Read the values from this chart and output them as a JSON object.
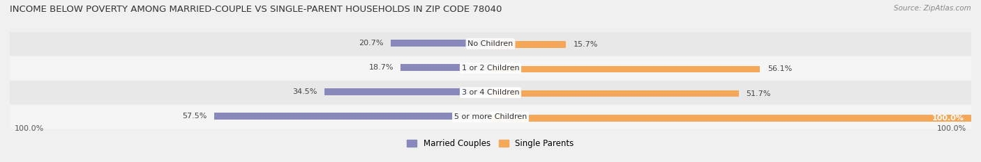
{
  "title": "INCOME BELOW POVERTY AMONG MARRIED-COUPLE VS SINGLE-PARENT HOUSEHOLDS IN ZIP CODE 78040",
  "source": "Source: ZipAtlas.com",
  "categories": [
    "No Children",
    "1 or 2 Children",
    "3 or 4 Children",
    "5 or more Children"
  ],
  "married_values": [
    20.7,
    18.7,
    34.5,
    57.5
  ],
  "single_values": [
    15.7,
    56.1,
    51.7,
    100.0
  ],
  "max_val": 100.0,
  "married_color": "#8888bb",
  "single_color": "#f5a85a",
  "title_fontsize": 9.5,
  "label_fontsize": 8,
  "tick_fontsize": 8,
  "legend_fontsize": 8.5,
  "source_fontsize": 7.5,
  "background_color": "#f0f0f0",
  "row_bg_even": "#e8e8e8",
  "row_bg_odd": "#f5f5f5",
  "left_axis_label": "100.0%",
  "right_axis_label": "100.0%"
}
